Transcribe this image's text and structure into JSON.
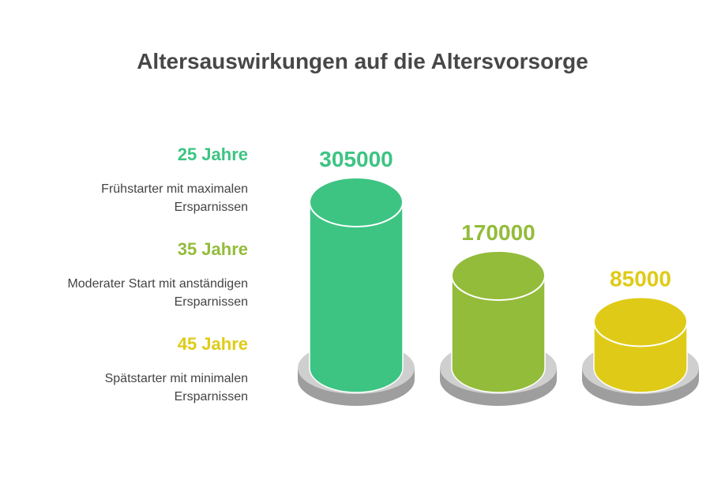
{
  "chart_data": {
    "type": "bar",
    "title": "Altersauswirkungen auf die Altersvorsorge",
    "categories": [
      "25 Jahre",
      "35 Jahre",
      "45 Jahre"
    ],
    "descriptions": [
      [
        "Frühstarter mit maximalen",
        "Ersparnissen"
      ],
      [
        "Moderater Start mit anständigen",
        "Ersparnissen"
      ],
      [
        "Spätstarter mit minimalen",
        "Ersparnissen"
      ]
    ],
    "values": [
      305000,
      170000,
      85000
    ],
    "value_labels": [
      "305000",
      "170000",
      "85000"
    ],
    "colors": [
      "#3DC483",
      "#93BC3A",
      "#DFCB17"
    ],
    "xlabel": "",
    "ylabel": "",
    "grid": false
  }
}
